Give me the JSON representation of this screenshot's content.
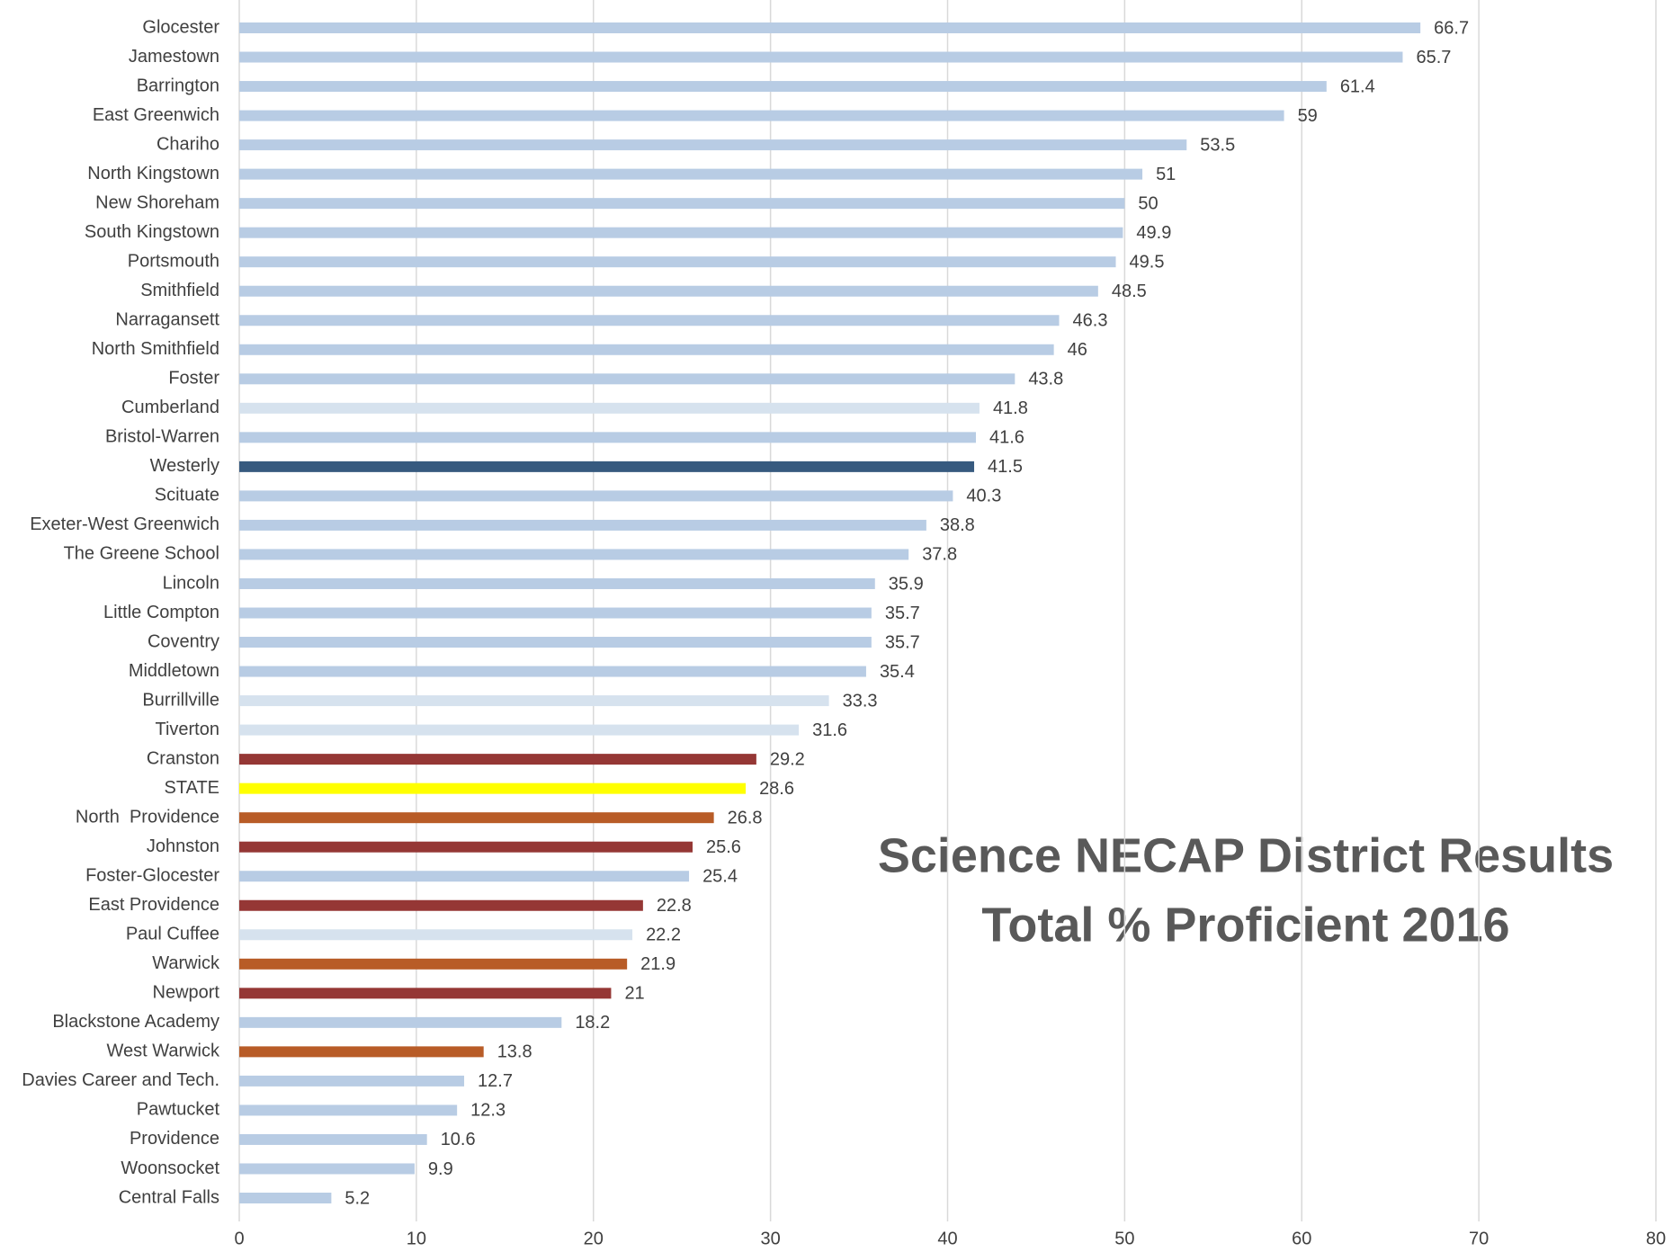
{
  "chart_data": {
    "type": "barh",
    "title": "Science NECAP District Results",
    "subtitle": "Total % Proficient 2016",
    "categories": [
      "Glocester",
      "Jamestown",
      "Barrington",
      "East Greenwich",
      "Chariho",
      "North Kingstown",
      "New Shoreham",
      "South Kingstown",
      "Portsmouth",
      "Smithfield",
      "Narragansett",
      "North Smithfield",
      "Foster",
      "Cumberland",
      "Bristol-Warren",
      "Westerly",
      "Scituate",
      "Exeter-West Greenwich",
      "The Greene School",
      "Lincoln",
      "Little Compton",
      "Coventry",
      "Middletown",
      "Burrillville",
      "Tiverton",
      "Cranston",
      "STATE",
      "North  Providence",
      "Johnston",
      "Foster-Glocester",
      "East Providence",
      "Paul Cuffee",
      "Warwick",
      "Newport",
      "Blackstone Academy",
      "West Warwick",
      "Davies Career and Tech.",
      "Pawtucket",
      "Providence",
      "Woonsocket",
      "Central Falls"
    ],
    "values": [
      66.7,
      65.7,
      61.4,
      59,
      53.5,
      51,
      50,
      49.9,
      49.5,
      48.5,
      46.3,
      46,
      43.8,
      41.8,
      41.6,
      41.5,
      40.3,
      38.8,
      37.8,
      35.9,
      35.7,
      35.7,
      35.4,
      33.3,
      31.6,
      29.2,
      28.6,
      26.8,
      25.6,
      25.4,
      22.8,
      22.2,
      21.9,
      21,
      18.2,
      13.8,
      12.7,
      12.3,
      10.6,
      9.9,
      5.2
    ],
    "colors": [
      "#b8cce4",
      "#b8cce4",
      "#b8cce4",
      "#b8cce4",
      "#b8cce4",
      "#b8cce4",
      "#b8cce4",
      "#b8cce4",
      "#b8cce4",
      "#b8cce4",
      "#b8cce4",
      "#b8cce4",
      "#b8cce4",
      "#d6e2ee",
      "#b8cce4",
      "#375a7f",
      "#b8cce4",
      "#b8cce4",
      "#b8cce4",
      "#b8cce4",
      "#b8cce4",
      "#b8cce4",
      "#b8cce4",
      "#d6e2ee",
      "#d6e2ee",
      "#953735",
      "#ffff00",
      "#b85c27",
      "#953735",
      "#b8cce4",
      "#953735",
      "#d6e2ee",
      "#b85c27",
      "#953735",
      "#b8cce4",
      "#b85c27",
      "#b8cce4",
      "#b8cce4",
      "#b8cce4",
      "#b8cce4",
      "#b8cce4"
    ],
    "xlim": [
      0,
      80
    ],
    "xticks": [
      0,
      10,
      20,
      30,
      40,
      50,
      60,
      70,
      80
    ],
    "grid": true
  }
}
